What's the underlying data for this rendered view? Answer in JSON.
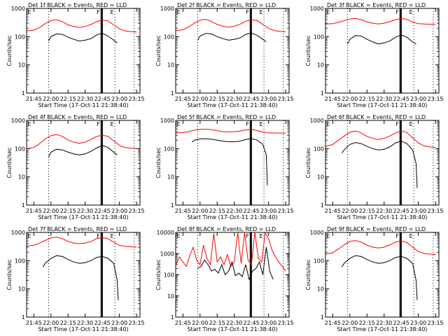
{
  "figure": {
    "xlabel": "Start Time (17-Oct-11 21:38:40)",
    "ylabel": "Counts/sec",
    "legend_text": "BLACK = Events, RED = LLD",
    "x_tick_labels": [
      "21:45",
      "22:00",
      "22:15",
      "22:30",
      "22:45",
      "23:00",
      "23:15"
    ],
    "y_tick_labels": [
      "1",
      "10",
      "100",
      "1000"
    ],
    "y_tick_labels_panel8": [
      "1",
      "10",
      "100",
      "1000",
      "10000"
    ],
    "marker_labels": [
      "F",
      "E"
    ],
    "colors": {
      "events": "#000000",
      "lld": "#ff0000",
      "axes": "#000000"
    }
  },
  "chart_data": [
    {
      "type": "line",
      "title": "Det 1f BLACK = Events, RED = LLD",
      "yscale": "log",
      "ylim": [
        1,
        1000
      ],
      "xlim": [
        "21:38:40",
        "23:18"
      ],
      "vlines_dotted": [
        "21:58",
        "22:56",
        "23:13"
      ],
      "vlines_solid": [
        "22:44",
        "22:45"
      ],
      "series": [
        {
          "name": "RED = LLD",
          "color": "#ff0000",
          "x": [
            "21:39",
            "21:45",
            "21:50",
            "21:55",
            "22:00",
            "22:05",
            "22:10",
            "22:15",
            "22:20",
            "22:25",
            "22:30",
            "22:35",
            "22:40",
            "22:45",
            "22:50",
            "22:55",
            "23:00",
            "23:05",
            "23:10",
            "23:15"
          ],
          "values": [
            160,
            170,
            210,
            290,
            370,
            400,
            340,
            260,
            230,
            210,
            230,
            270,
            340,
            390,
            360,
            260,
            190,
            160,
            150,
            145
          ]
        },
        {
          "name": "BLACK = Events",
          "color": "#000000",
          "x": [
            "21:58",
            "22:00",
            "22:05",
            "22:10",
            "22:15",
            "22:20",
            "22:25",
            "22:30",
            "22:35",
            "22:40",
            "22:45",
            "22:50",
            "22:55",
            "22:58"
          ],
          "values": [
            70,
            100,
            125,
            120,
            95,
            80,
            70,
            75,
            85,
            115,
            130,
            105,
            75,
            60
          ]
        }
      ]
    },
    {
      "type": "line",
      "title": "Det 2f BLACK = Events, RED = LLD",
      "yscale": "log",
      "ylim": [
        1,
        1000
      ],
      "xlim": [
        "21:38:40",
        "23:18"
      ],
      "vlines_dotted": [
        "21:58",
        "22:56",
        "23:13"
      ],
      "vlines_solid": [
        "22:44",
        "22:45"
      ],
      "series": [
        {
          "name": "RED = LLD",
          "color": "#ff0000",
          "x": [
            "21:39",
            "21:45",
            "21:50",
            "21:55",
            "22:00",
            "22:05",
            "22:10",
            "22:15",
            "22:20",
            "22:25",
            "22:30",
            "22:35",
            "22:40",
            "22:45",
            "22:50",
            "22:55",
            "23:00",
            "23:05",
            "23:10",
            "23:15"
          ],
          "values": [
            165,
            175,
            220,
            300,
            380,
            410,
            350,
            270,
            235,
            215,
            235,
            275,
            350,
            400,
            370,
            270,
            195,
            165,
            155,
            150
          ]
        },
        {
          "name": "BLACK = Events",
          "color": "#000000",
          "x": [
            "21:58",
            "22:00",
            "22:05",
            "22:10",
            "22:15",
            "22:20",
            "22:25",
            "22:30",
            "22:35",
            "22:40",
            "22:45",
            "22:50",
            "22:55",
            "22:58"
          ],
          "values": [
            75,
            105,
            130,
            125,
            100,
            85,
            75,
            80,
            90,
            120,
            135,
            110,
            80,
            65
          ]
        }
      ]
    },
    {
      "type": "line",
      "title": "Det 3f BLACK = Events, RED = LLD",
      "yscale": "log",
      "ylim": [
        1,
        1000
      ],
      "xlim": [
        "21:38:40",
        "23:18"
      ],
      "vlines_dotted": [
        "21:58",
        "22:56",
        "23:13"
      ],
      "vlines_solid": [
        "22:44",
        "22:45"
      ],
      "series": [
        {
          "name": "RED = LLD",
          "color": "#ff0000",
          "x": [
            "21:39",
            "21:45",
            "21:50",
            "21:55",
            "22:00",
            "22:05",
            "22:10",
            "22:15",
            "22:20",
            "22:25",
            "22:30",
            "22:35",
            "22:40",
            "22:45",
            "22:50",
            "22:55",
            "23:00",
            "23:05",
            "23:10",
            "23:15"
          ],
          "values": [
            280,
            290,
            320,
            370,
            420,
            440,
            400,
            330,
            300,
            280,
            300,
            340,
            400,
            440,
            410,
            330,
            290,
            280,
            275,
            275
          ]
        },
        {
          "name": "BLACK = Events",
          "color": "#000000",
          "x": [
            "21:58",
            "22:00",
            "22:05",
            "22:10",
            "22:15",
            "22:20",
            "22:25",
            "22:30",
            "22:35",
            "22:40",
            "22:45",
            "22:50",
            "22:55",
            "22:58"
          ],
          "values": [
            55,
            80,
            110,
            105,
            80,
            65,
            55,
            60,
            70,
            95,
            115,
            95,
            65,
            55
          ]
        }
      ]
    },
    {
      "type": "line",
      "title": "Det 4f BLACK = Events, RED = LLD",
      "yscale": "log",
      "ylim": [
        1,
        1000
      ],
      "xlim": [
        "21:38:40",
        "23:18"
      ],
      "vlines_dotted": [
        "21:58",
        "22:56",
        "23:13"
      ],
      "vlines_solid": [
        "22:44",
        "22:45"
      ],
      "series": [
        {
          "name": "RED = LLD",
          "color": "#ff0000",
          "x": [
            "21:39",
            "21:45",
            "21:50",
            "21:55",
            "22:00",
            "22:05",
            "22:10",
            "22:15",
            "22:20",
            "22:25",
            "22:30",
            "22:35",
            "22:40",
            "22:45",
            "22:50",
            "22:55",
            "23:00",
            "23:05",
            "23:10",
            "23:15"
          ],
          "values": [
            100,
            110,
            150,
            220,
            290,
            320,
            270,
            200,
            170,
            155,
            170,
            210,
            270,
            300,
            270,
            190,
            130,
            110,
            105,
            100
          ]
        },
        {
          "name": "BLACK = Events",
          "color": "#000000",
          "x": [
            "21:58",
            "22:00",
            "22:05",
            "22:10",
            "22:15",
            "22:20",
            "22:25",
            "22:30",
            "22:35",
            "22:40",
            "22:45",
            "22:50",
            "22:55",
            "22:58"
          ],
          "values": [
            50,
            75,
            95,
            90,
            75,
            65,
            60,
            65,
            80,
            105,
            130,
            110,
            75,
            60
          ]
        }
      ]
    },
    {
      "type": "line",
      "title": "Det 5f BLACK = Events, RED = LLD",
      "yscale": "log",
      "ylim": [
        1,
        1000
      ],
      "xlim": [
        "21:38:40",
        "23:18"
      ],
      "vlines_dotted": [
        "21:58",
        "22:56",
        "23:13"
      ],
      "vlines_solid": [
        "22:44",
        "22:45"
      ],
      "series": [
        {
          "name": "RED = LLD",
          "color": "#ff0000",
          "x": [
            "21:39",
            "21:45",
            "21:50",
            "21:55",
            "22:00",
            "22:05",
            "22:10",
            "22:15",
            "22:20",
            "22:25",
            "22:30",
            "22:35",
            "22:40",
            "22:45",
            "22:50",
            "22:55",
            "23:00",
            "23:05",
            "23:10",
            "23:15"
          ],
          "values": [
            360,
            370,
            400,
            450,
            480,
            490,
            470,
            430,
            400,
            390,
            400,
            420,
            460,
            480,
            440,
            380,
            360,
            360,
            355,
            355
          ]
        },
        {
          "name": "BLACK = Events",
          "color": "#000000",
          "x": [
            "21:53",
            "21:55",
            "22:00",
            "22:05",
            "22:10",
            "22:15",
            "22:20",
            "22:25",
            "22:30",
            "22:35",
            "22:40",
            "22:45",
            "22:50",
            "22:55",
            "22:58",
            "22:59"
          ],
          "values": [
            170,
            200,
            220,
            225,
            215,
            200,
            185,
            175,
            175,
            185,
            210,
            225,
            200,
            140,
            60,
            5
          ]
        }
      ]
    },
    {
      "type": "line",
      "title": "Det 6f BLACK = Events, RED = LLD",
      "yscale": "log",
      "ylim": [
        1,
        1000
      ],
      "xlim": [
        "21:38:40",
        "23:18"
      ],
      "vlines_dotted": [
        "21:58",
        "22:56",
        "23:13"
      ],
      "vlines_solid": [
        "22:44",
        "22:45"
      ],
      "series": [
        {
          "name": "RED = LLD",
          "color": "#ff0000",
          "x": [
            "21:39",
            "21:45",
            "21:50",
            "21:55",
            "22:00",
            "22:05",
            "22:10",
            "22:15",
            "22:20",
            "22:25",
            "22:30",
            "22:35",
            "22:40",
            "22:45",
            "22:50",
            "22:55",
            "23:00",
            "23:05",
            "23:10",
            "23:15"
          ],
          "values": [
            120,
            140,
            200,
            280,
            380,
            420,
            360,
            270,
            230,
            210,
            230,
            280,
            360,
            420,
            370,
            240,
            160,
            125,
            115,
            110
          ]
        },
        {
          "name": "BLACK = Events",
          "color": "#000000",
          "x": [
            "21:53",
            "21:55",
            "22:00",
            "22:05",
            "22:10",
            "22:15",
            "22:20",
            "22:25",
            "22:30",
            "22:35",
            "22:40",
            "22:45",
            "22:50",
            "22:55",
            "22:58",
            "22:59"
          ],
          "values": [
            70,
            90,
            140,
            165,
            150,
            120,
            100,
            90,
            95,
            115,
            160,
            185,
            150,
            90,
            30,
            4
          ]
        }
      ]
    },
    {
      "type": "line",
      "title": "Det 7f BLACK = Events, RED = LLD",
      "yscale": "log",
      "ylim": [
        1,
        1000
      ],
      "xlim": [
        "21:38:40",
        "23:18"
      ],
      "vlines_dotted": [
        "21:58",
        "22:56",
        "23:13"
      ],
      "vlines_solid": [
        "22:44",
        "22:45"
      ],
      "series": [
        {
          "name": "RED = LLD",
          "color": "#ff0000",
          "x": [
            "21:39",
            "21:45",
            "21:50",
            "21:55",
            "22:00",
            "22:05",
            "22:10",
            "22:15",
            "22:20",
            "22:25",
            "22:30",
            "22:35",
            "22:40",
            "22:45",
            "22:50",
            "22:55",
            "23:00",
            "23:05",
            "23:10",
            "23:15"
          ],
          "values": [
            330,
            350,
            420,
            520,
            640,
            680,
            600,
            480,
            420,
            400,
            420,
            480,
            600,
            660,
            600,
            450,
            350,
            320,
            310,
            300
          ]
        },
        {
          "name": "BLACK = Events",
          "color": "#000000",
          "x": [
            "21:53",
            "21:55",
            "22:00",
            "22:05",
            "22:10",
            "22:15",
            "22:20",
            "22:25",
            "22:30",
            "22:35",
            "22:40",
            "22:45",
            "22:50",
            "22:55",
            "22:58",
            "22:59"
          ],
          "values": [
            60,
            80,
            120,
            150,
            140,
            110,
            90,
            80,
            85,
            100,
            130,
            140,
            120,
            80,
            20,
            4
          ]
        }
      ]
    },
    {
      "type": "line",
      "title": "Det 8f BLACK = Events, RED = LLD",
      "yscale": "log",
      "ylim": [
        1,
        10000
      ],
      "xlim": [
        "21:38:40",
        "23:18"
      ],
      "vlines_dotted": [
        "21:58",
        "22:56",
        "23:13"
      ],
      "vlines_solid": [
        "22:44",
        "22:45"
      ],
      "series": [
        {
          "name": "RED = LLD",
          "color": "#ff0000",
          "x": [
            "21:39",
            "21:42",
            "21:45",
            "21:48",
            "21:51",
            "21:54",
            "21:57",
            "22:00",
            "22:03",
            "22:06",
            "22:09",
            "22:12",
            "22:15",
            "22:18",
            "22:21",
            "22:24",
            "22:27",
            "22:30",
            "22:33",
            "22:36",
            "22:39",
            "22:42",
            "22:45",
            "22:48",
            "22:51",
            "22:54",
            "22:57",
            "23:00",
            "23:03",
            "23:06",
            "23:09",
            "23:12",
            "23:15"
          ],
          "values": [
            300,
            700,
            400,
            250,
            800,
            2000,
            500,
            300,
            2500,
            600,
            300,
            9000,
            400,
            700,
            300,
            900,
            250,
            400,
            10000,
            350,
            10000,
            500,
            300,
            10000,
            600,
            400,
            10000,
            5000,
            1500,
            700,
            400,
            250,
            150
          ]
        },
        {
          "name": "BLACK = Events",
          "color": "#000000",
          "x": [
            "21:58",
            "22:01",
            "22:04",
            "22:07",
            "22:10",
            "22:13",
            "22:16",
            "22:19",
            "22:22",
            "22:25",
            "22:28",
            "22:31",
            "22:34",
            "22:37",
            "22:40",
            "22:43",
            "22:46",
            "22:49",
            "22:52",
            "22:55",
            "22:58",
            "23:01",
            "23:04"
          ],
          "values": [
            200,
            250,
            500,
            300,
            150,
            180,
            120,
            300,
            100,
            150,
            400,
            90,
            120,
            80,
            300,
            60,
            150,
            200,
            400,
            100,
            2000,
            150,
            60
          ]
        }
      ]
    },
    {
      "type": "line",
      "title": "Det 9f BLACK = Events, RED = LLD",
      "yscale": "log",
      "ylim": [
        1,
        1000
      ],
      "xlim": [
        "21:38:40",
        "23:18"
      ],
      "vlines_dotted": [
        "21:58",
        "22:56",
        "23:13"
      ],
      "vlines_solid": [
        "22:44",
        "22:45"
      ],
      "series": [
        {
          "name": "RED = LLD",
          "color": "#ff0000",
          "x": [
            "21:39",
            "21:45",
            "21:50",
            "21:55",
            "22:00",
            "22:05",
            "22:10",
            "22:15",
            "22:20",
            "22:25",
            "22:30",
            "22:35",
            "22:40",
            "22:45",
            "22:50",
            "22:55",
            "23:00",
            "23:05",
            "23:10",
            "23:15"
          ],
          "values": [
            170,
            190,
            260,
            360,
            480,
            520,
            450,
            350,
            300,
            280,
            300,
            360,
            450,
            500,
            440,
            300,
            210,
            180,
            170,
            165
          ]
        },
        {
          "name": "BLACK = Events",
          "color": "#000000",
          "x": [
            "21:53",
            "21:55",
            "22:00",
            "22:05",
            "22:10",
            "22:15",
            "22:20",
            "22:25",
            "22:30",
            "22:35",
            "22:40",
            "22:45",
            "22:50",
            "22:55",
            "22:58",
            "22:59"
          ],
          "values": [
            60,
            80,
            120,
            150,
            140,
            110,
            90,
            80,
            85,
            100,
            130,
            140,
            120,
            80,
            20,
            4
          ]
        }
      ]
    }
  ]
}
